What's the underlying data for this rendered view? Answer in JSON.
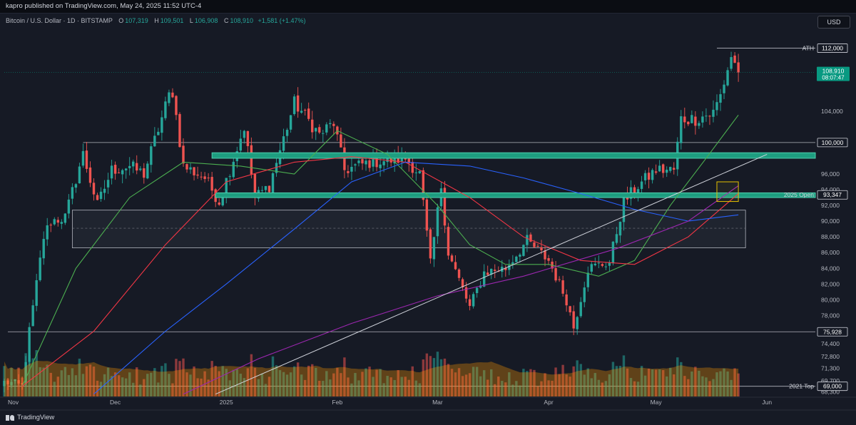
{
  "header": {
    "published": "kapro published on TradingView.com, May 24, 2025 11:52 UTC-4",
    "currency_button": "USD"
  },
  "legend": {
    "symbol": "Bitcoin / U.S. Dollar · 1D · BITSTAMP",
    "open_label": "O",
    "open": "107,319",
    "high_label": "H",
    "high": "109,501",
    "low_label": "L",
    "low": "106,908",
    "close_label": "C",
    "close": "108,910",
    "change": "+1,581 (+1.47%)"
  },
  "footer": {
    "brand": "TradingView"
  },
  "colors": {
    "background": "#161a25",
    "up": "#26a69a",
    "down": "#ef5350",
    "sma_short": "#4caf50",
    "sma_mid": "#f23645",
    "sma_long": "#2962ff",
    "sma_longest": "#9c27b0",
    "zone": "#1e9e80"
  },
  "chart_data": {
    "type": "candlestick",
    "symbol": "BTCUSD",
    "timeframe": "1D",
    "ylim": [
      67700,
      114500
    ],
    "y_ticks": [
      68300,
      69700,
      71300,
      72800,
      74400,
      76000,
      78000,
      80000,
      82000,
      84000,
      86000,
      88000,
      90000,
      92000,
      94000,
      96000,
      100000,
      104000
    ],
    "y_tick_labels": [
      "68,300",
      "69,700",
      "71,300",
      "72,800",
      "74,400",
      "76,000",
      "78,000",
      "80,000",
      "82,000",
      "84,000",
      "86,000",
      "88,000",
      "90,000",
      "92,000",
      "94,000",
      "96,000",
      "100,000",
      "104,000"
    ],
    "x_ticks": [
      {
        "label": "Nov",
        "date": "2024-11-01"
      },
      {
        "label": "Dec",
        "date": "2024-12-01"
      },
      {
        "label": "2025",
        "date": "2025-01-01"
      },
      {
        "label": "Feb",
        "date": "2025-02-01"
      },
      {
        "label": "Mar",
        "date": "2025-03-01"
      },
      {
        "label": "Apr",
        "date": "2025-04-01"
      },
      {
        "label": "May",
        "date": "2025-05-01"
      },
      {
        "label": "Jun",
        "date": "2025-06-01"
      }
    ],
    "last_date": "2025-05-24",
    "price_tags": [
      {
        "value": 112000,
        "label": "112,000",
        "note": "ATH",
        "style": "outline"
      },
      {
        "value": 108910,
        "label": "108,910",
        "sub": "08:07:47",
        "style": "current"
      },
      {
        "value": 100000,
        "label": "100,000",
        "style": "outline"
      },
      {
        "value": 93347,
        "label": "93,347",
        "note": "2025 Open",
        "style": "outline"
      },
      {
        "value": 75928,
        "label": "75,928",
        "style": "outline"
      },
      {
        "value": 69000,
        "label": "69,000",
        "note": "2021 Top",
        "style": "outline"
      }
    ],
    "horizontal_lines": [
      {
        "value": 112000,
        "from": "2025-05-18"
      },
      {
        "value": 100000,
        "from": "2024-11-22"
      },
      {
        "value": 75928,
        "from": "2024-11-01"
      },
      {
        "value": 69000,
        "from": "2024-11-01"
      }
    ],
    "zones": [
      {
        "top": 98700,
        "bottom": 98000,
        "from": "2024-12-28",
        "name": "resistance band"
      },
      {
        "top": 93600,
        "bottom": 93000,
        "from": "2024-12-29",
        "name": "2025 open band"
      }
    ],
    "range_box": {
      "from": "2024-11-19",
      "to": "2025-05-26",
      "top": 91400,
      "bottom": 86600,
      "mid": 89100
    },
    "highlight_box": {
      "from": "2025-05-18",
      "to": "2025-05-24",
      "top": 95000,
      "bottom": 92500
    },
    "trendline": {
      "from": {
        "date": "2024-12-29",
        "value": 68000
      },
      "to": {
        "date": "2025-06-01",
        "value": 98500
      }
    },
    "moving_averages": [
      {
        "color": "#4caf50",
        "points": [
          [
            "2024-11-05",
            69000
          ],
          [
            "2024-11-20",
            84000
          ],
          [
            "2024-12-05",
            93000
          ],
          [
            "2024-12-20",
            97500
          ],
          [
            "2025-01-05",
            97000
          ],
          [
            "2025-01-20",
            96000
          ],
          [
            "2025-02-01",
            101500
          ],
          [
            "2025-02-15",
            98500
          ],
          [
            "2025-03-01",
            92000
          ],
          [
            "2025-03-10",
            87000
          ],
          [
            "2025-03-20",
            84500
          ],
          [
            "2025-04-01",
            84500
          ],
          [
            "2025-04-15",
            83000
          ],
          [
            "2025-04-25",
            85000
          ],
          [
            "2025-05-05",
            92000
          ],
          [
            "2025-05-15",
            98000
          ],
          [
            "2025-05-24",
            103500
          ]
        ]
      },
      {
        "color": "#f23645",
        "points": [
          [
            "2024-11-05",
            69000
          ],
          [
            "2024-11-25",
            76000
          ],
          [
            "2024-12-15",
            87000
          ],
          [
            "2025-01-01",
            95000
          ],
          [
            "2025-01-20",
            97500
          ],
          [
            "2025-02-05",
            98200
          ],
          [
            "2025-02-20",
            97500
          ],
          [
            "2025-03-10",
            93000
          ],
          [
            "2025-03-25",
            88000
          ],
          [
            "2025-04-10",
            85000
          ],
          [
            "2025-04-25",
            84500
          ],
          [
            "2025-05-10",
            88000
          ],
          [
            "2025-05-24",
            93500
          ]
        ]
      },
      {
        "color": "#2962ff",
        "points": [
          [
            "2024-11-25",
            68000
          ],
          [
            "2024-12-15",
            76000
          ],
          [
            "2025-01-01",
            82000
          ],
          [
            "2025-01-20",
            89000
          ],
          [
            "2025-02-05",
            95000
          ],
          [
            "2025-02-20",
            97500
          ],
          [
            "2025-03-10",
            97000
          ],
          [
            "2025-03-25",
            95500
          ],
          [
            "2025-04-10",
            93500
          ],
          [
            "2025-04-25",
            91500
          ],
          [
            "2025-05-10",
            90000
          ],
          [
            "2025-05-24",
            90800
          ]
        ]
      },
      {
        "color": "#9c27b0",
        "points": [
          [
            "2024-12-20",
            68000
          ],
          [
            "2025-01-10",
            72500
          ],
          [
            "2025-02-05",
            77000
          ],
          [
            "2025-03-01",
            80500
          ],
          [
            "2025-03-25",
            83000
          ],
          [
            "2025-04-20",
            86500
          ],
          [
            "2025-05-10",
            90000
          ],
          [
            "2025-05-24",
            94500
          ]
        ]
      }
    ],
    "anchors": [
      [
        "2024-11-01",
        69500
      ],
      [
        "2024-11-05",
        69000
      ],
      [
        "2024-11-07",
        76000
      ],
      [
        "2024-11-11",
        88000
      ],
      [
        "2024-11-13",
        90000
      ],
      [
        "2024-11-17",
        90500
      ],
      [
        "2024-11-21",
        97000
      ],
      [
        "2024-11-22",
        98500
      ],
      [
        "2024-11-26",
        92000
      ],
      [
        "2024-11-30",
        96500
      ],
      [
        "2024-12-05",
        97000
      ],
      [
        "2024-12-09",
        96000
      ],
      [
        "2024-12-16",
        106000
      ],
      [
        "2024-12-17",
        106500
      ],
      [
        "2024-12-20",
        97000
      ],
      [
        "2024-12-26",
        95500
      ],
      [
        "2024-12-30",
        92500
      ],
      [
        "2025-01-06",
        102000
      ],
      [
        "2025-01-09",
        93000
      ],
      [
        "2025-01-13",
        94500
      ],
      [
        "2025-01-20",
        105000
      ],
      [
        "2025-01-22",
        104000
      ],
      [
        "2025-01-27",
        101000
      ],
      [
        "2025-01-31",
        102500
      ],
      [
        "2025-02-03",
        96500
      ],
      [
        "2025-02-10",
        97500
      ],
      [
        "2025-02-20",
        98000
      ],
      [
        "2025-02-24",
        96000
      ],
      [
        "2025-02-27",
        84500
      ],
      [
        "2025-03-02",
        94500
      ],
      [
        "2025-03-04",
        86000
      ],
      [
        "2025-03-10",
        79000
      ],
      [
        "2025-03-14",
        83500
      ],
      [
        "2025-03-20",
        84000
      ],
      [
        "2025-03-26",
        87500
      ],
      [
        "2025-04-01",
        85000
      ],
      [
        "2025-04-06",
        80000
      ],
      [
        "2025-04-08",
        76500
      ],
      [
        "2025-04-12",
        84000
      ],
      [
        "2025-04-18",
        84800
      ],
      [
        "2025-04-22",
        92500
      ],
      [
        "2025-04-26",
        94500
      ],
      [
        "2025-05-01",
        96500
      ],
      [
        "2025-05-06",
        96500
      ],
      [
        "2025-05-08",
        103000
      ],
      [
        "2025-05-12",
        103000
      ],
      [
        "2025-05-17",
        103800
      ],
      [
        "2025-05-19",
        106000
      ],
      [
        "2025-05-22",
        111000
      ],
      [
        "2025-05-24",
        108910
      ]
    ],
    "volume": {
      "bar_values_relative": "generated",
      "ma_peak_date": "2024-11-28",
      "max_relative": 1.0
    }
  }
}
